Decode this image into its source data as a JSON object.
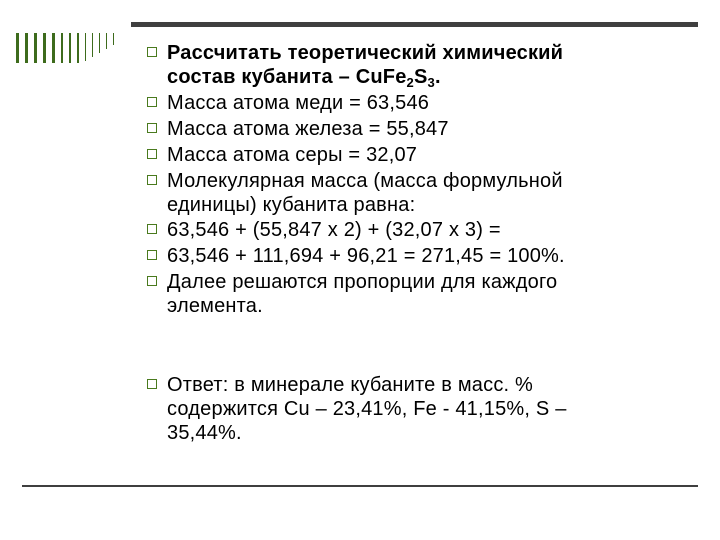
{
  "slide": {
    "bullets": [
      {
        "lines": [
          "Рассчитать теоретический химический",
          "состав кубанита – "
        ],
        "formula": {
          "cu": "CuFe",
          "n1": "2",
          "s": "S",
          "n2": "3",
          "end": "."
        }
      },
      {
        "lines": [
          "Масса атома меди = 63,546"
        ]
      },
      {
        "lines": [
          "Масса атома железа = 55,847"
        ]
      },
      {
        "lines": [
          "Масса атома серы = 32,07"
        ]
      },
      {
        "lines": [
          "Молекулярная масса (масса формульной",
          "единицы) кубанита равна:"
        ]
      },
      {
        "lines": [
          "63,546  +  (55,847 х 2)  +  (32,07 х 3) ="
        ]
      },
      {
        "lines": [
          "63,546 + 111,694 + 96,21 = 271,45  = 100%."
        ]
      },
      {
        "lines": [
          "Далее решаются пропорции для каждого",
          "элемента."
        ]
      },
      {
        "lines": [
          "Ответ:  в минерале кубаните в масс. %",
          "содержится Cu – 23,41%,  Fe  - 41,15%,  S –",
          "35,44%."
        ]
      }
    ]
  },
  "colors": {
    "bullet": "#4a7a1e",
    "rule": "#3f3f3f",
    "stripes": "#3d6b1c"
  }
}
